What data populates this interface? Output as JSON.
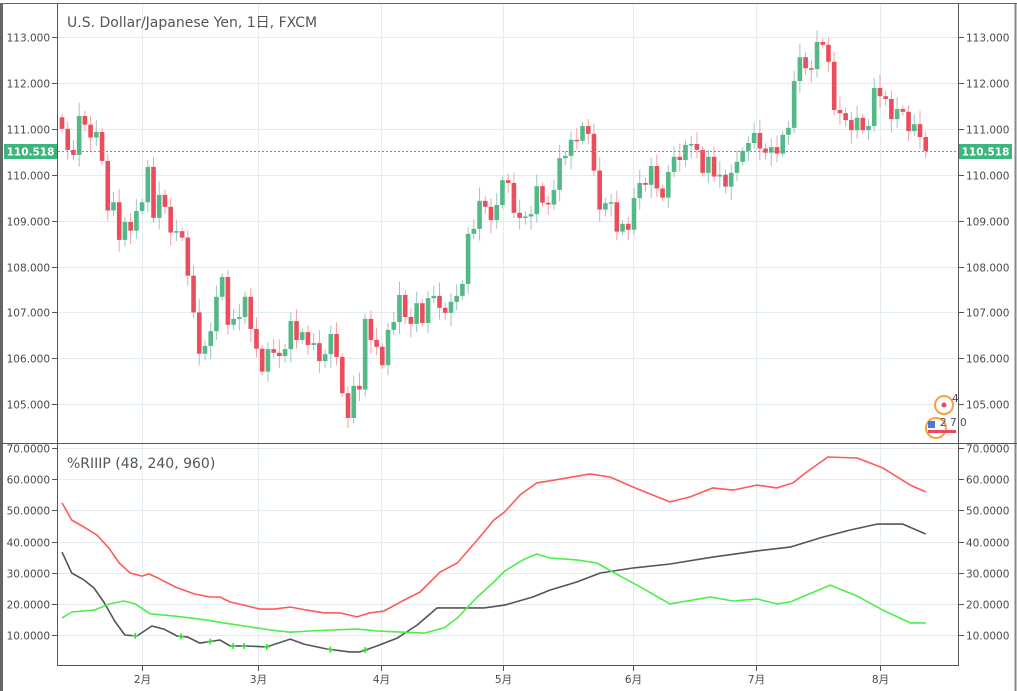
{
  "chart_data": [
    {
      "type": "candlestick",
      "title": "U.S. Dollar/Japanese Yen, 1日, FXCM",
      "last_price": 110.518,
      "last_price_label": "110.518",
      "ylim": [
        104.3,
        113.8
      ],
      "y_ticks": [
        "105.000",
        "106.000",
        "107.000",
        "108.000",
        "109.000",
        "110.000",
        "111.000",
        "112.000",
        "113.000"
      ],
      "first_open": 111.25,
      "close": [
        111.0,
        110.54,
        110.43,
        111.28,
        111.09,
        110.81,
        110.93,
        110.3,
        109.22,
        109.4,
        108.58,
        108.97,
        108.78,
        109.21,
        109.4,
        110.17,
        109.06,
        109.56,
        109.3,
        108.74,
        108.77,
        108.63,
        107.8,
        107.0,
        106.1,
        106.27,
        106.59,
        107.34,
        107.77,
        106.73,
        106.86,
        106.9,
        107.34,
        106.64,
        106.21,
        105.71,
        106.2,
        106.12,
        106.05,
        106.2,
        106.81,
        106.4,
        106.57,
        106.29,
        106.33,
        105.94,
        106.09,
        106.53,
        106.03,
        105.24,
        104.7,
        105.4,
        105.32,
        106.86,
        106.4,
        106.25,
        105.85,
        106.62,
        106.79,
        107.38,
        106.9,
        106.75,
        107.2,
        106.77,
        107.31,
        107.36,
        107.1,
        106.99,
        107.23,
        107.36,
        107.62,
        108.71,
        108.82,
        109.43,
        109.3,
        109.01,
        109.34,
        109.88,
        109.82,
        109.17,
        109.06,
        109.09,
        109.14,
        109.75,
        109.39,
        109.35,
        109.67,
        110.36,
        110.41,
        110.76,
        110.74,
        111.06,
        110.89,
        110.09,
        109.24,
        109.38,
        109.4,
        108.76,
        108.93,
        108.8,
        109.49,
        109.82,
        109.78,
        110.19,
        109.7,
        109.5,
        110.06,
        110.39,
        110.32,
        110.65,
        110.67,
        110.54,
        110.04,
        110.39,
        109.96,
        110.0,
        109.74,
        110.04,
        110.28,
        110.52,
        110.69,
        110.91,
        110.57,
        110.48,
        110.6,
        110.46,
        110.87,
        111.02,
        112.04,
        112.56,
        112.32,
        112.3,
        112.89,
        112.83,
        112.46,
        111.41,
        111.34,
        111.19,
        110.97,
        111.24,
        110.97,
        111.06,
        111.89,
        111.71,
        111.65,
        111.21,
        111.43,
        111.37,
        110.95,
        111.1,
        110.82,
        110.518
      ],
      "event_badges": [
        "4",
        "2 7 0"
      ]
    },
    {
      "type": "line",
      "title": "%RIIIP (48, 240, 960)",
      "ylim": [
        5,
        72
      ],
      "y_ticks": [
        "10.0000",
        "20.0000",
        "30.0000",
        "40.0000",
        "50.0000",
        "60.0000",
        "70.0000"
      ],
      "series": [
        {
          "name": "48",
          "color": "#ff5a5a",
          "points": [
            [
              0,
              52.4
            ],
            [
              1.7,
              46.9
            ],
            [
              3.8,
              44.7
            ],
            [
              6.1,
              42.1
            ],
            [
              8.2,
              37.9
            ],
            [
              10.0,
              33.1
            ],
            [
              11.9,
              29.9
            ],
            [
              14.0,
              28.9
            ],
            [
              15.2,
              29.6
            ],
            [
              17.1,
              28.0
            ],
            [
              19.8,
              25.4
            ],
            [
              23.1,
              23.2
            ],
            [
              25.9,
              22.2
            ],
            [
              27.6,
              22.2
            ],
            [
              29.4,
              20.6
            ],
            [
              31.8,
              19.6
            ],
            [
              34.6,
              18.3
            ],
            [
              37.1,
              18.3
            ],
            [
              39.9,
              19.0
            ],
            [
              42.8,
              18.0
            ],
            [
              45.8,
              17.1
            ],
            [
              48.6,
              17.1
            ],
            [
              51.6,
              15.8
            ],
            [
              53.8,
              17.1
            ],
            [
              56.3,
              17.7
            ],
            [
              59.8,
              21.2
            ],
            [
              62.6,
              23.8
            ],
            [
              66.1,
              30.2
            ],
            [
              69.1,
              33.1
            ],
            [
              72.6,
              40.5
            ],
            [
              75.5,
              46.9
            ],
            [
              77.4,
              49.5
            ],
            [
              80.1,
              55.0
            ],
            [
              83.0,
              58.8
            ],
            [
              88.3,
              60.4
            ],
            [
              92.3,
              61.7
            ],
            [
              95.8,
              60.7
            ],
            [
              99.8,
              57.5
            ],
            [
              103.3,
              54.9
            ],
            [
              106.3,
              52.7
            ],
            [
              109.8,
              54.3
            ],
            [
              113.8,
              57.2
            ],
            [
              117.3,
              56.5
            ],
            [
              121.5,
              58.1
            ],
            [
              125.0,
              57.2
            ],
            [
              127.8,
              58.8
            ],
            [
              130.2,
              62.3
            ],
            [
              133.9,
              67.1
            ],
            [
              139.0,
              66.8
            ],
            [
              143.5,
              63.6
            ],
            [
              148.3,
              58.1
            ],
            [
              151,
              55.9
            ]
          ]
        },
        {
          "name": "240",
          "color": "#555555",
          "points": [
            [
              0,
              36.6
            ],
            [
              1.7,
              29.9
            ],
            [
              3.8,
              27.7
            ],
            [
              5.6,
              25.1
            ],
            [
              7.3,
              20.6
            ],
            [
              9.3,
              14.2
            ],
            [
              11.0,
              10.0
            ],
            [
              13.1,
              9.7
            ],
            [
              15.7,
              12.9
            ],
            [
              17.8,
              11.9
            ],
            [
              20.1,
              9.7
            ],
            [
              21.9,
              9.4
            ],
            [
              24.1,
              7.4
            ],
            [
              27.6,
              8.4
            ],
            [
              29.4,
              6.5
            ],
            [
              31.8,
              6.5
            ],
            [
              35.8,
              6.2
            ],
            [
              39.9,
              8.7
            ],
            [
              42.3,
              7.1
            ],
            [
              46.3,
              5.5
            ],
            [
              50.3,
              4.6
            ],
            [
              52.1,
              4.6
            ],
            [
              55.1,
              6.5
            ],
            [
              58.6,
              9.0
            ],
            [
              62.1,
              13.2
            ],
            [
              65.6,
              18.7
            ],
            [
              67.8,
              18.7
            ],
            [
              73.8,
              18.7
            ],
            [
              77.4,
              19.6
            ],
            [
              82.3,
              22.2
            ],
            [
              85.3,
              24.4
            ],
            [
              90.0,
              27.0
            ],
            [
              94.1,
              29.9
            ],
            [
              99.8,
              31.5
            ],
            [
              106.3,
              32.8
            ],
            [
              113.8,
              35.0
            ],
            [
              121.5,
              37.0
            ],
            [
              127.3,
              38.2
            ],
            [
              133.0,
              41.4
            ],
            [
              137.8,
              43.7
            ],
            [
              142.5,
              45.6
            ],
            [
              147.0,
              45.6
            ],
            [
              151,
              42.4
            ]
          ]
        },
        {
          "name": "960",
          "color": "#4cee4c",
          "points": [
            [
              0,
              15.5
            ],
            [
              1.7,
              17.4
            ],
            [
              5.6,
              18.0
            ],
            [
              8.4,
              20.0
            ],
            [
              10.8,
              20.9
            ],
            [
              12.8,
              20.0
            ],
            [
              15.4,
              16.8
            ],
            [
              19.6,
              16.1
            ],
            [
              22.4,
              15.5
            ],
            [
              25.3,
              14.8
            ],
            [
              28.3,
              13.9
            ],
            [
              32.9,
              12.6
            ],
            [
              36.4,
              11.6
            ],
            [
              39.9,
              10.9
            ],
            [
              43.4,
              11.3
            ],
            [
              46.9,
              11.6
            ],
            [
              51.6,
              11.9
            ],
            [
              55.1,
              11.3
            ],
            [
              59.8,
              10.9
            ],
            [
              63.3,
              10.6
            ],
            [
              66.8,
              12.3
            ],
            [
              69.1,
              15.5
            ],
            [
              72.6,
              22.2
            ],
            [
              75.5,
              27.0
            ],
            [
              77.4,
              30.5
            ],
            [
              80.6,
              34.1
            ],
            [
              83.0,
              36.0
            ],
            [
              85.3,
              34.7
            ],
            [
              90.0,
              34.1
            ],
            [
              93.5,
              33.1
            ],
            [
              96.3,
              30.2
            ],
            [
              100.5,
              26.0
            ],
            [
              106.3,
              20.0
            ],
            [
              113.3,
              22.2
            ],
            [
              117.3,
              20.9
            ],
            [
              121.5,
              21.6
            ],
            [
              125.0,
              20.0
            ],
            [
              127.3,
              20.6
            ],
            [
              134.3,
              26.0
            ],
            [
              139.0,
              22.5
            ],
            [
              143.5,
              18.0
            ],
            [
              148.3,
              13.9
            ],
            [
              151,
              13.9
            ]
          ]
        }
      ],
      "markers_on": "240",
      "marker_color": "#33dd33",
      "marker_indices": [
        12.8,
        20.8,
        25.9,
        29.9,
        31.8,
        35.8,
        46.9,
        53.0
      ]
    }
  ],
  "x_axis": {
    "labels": [
      {
        "label": "2月",
        "index": 14.0
      },
      {
        "label": "3月",
        "index": 34.3
      },
      {
        "label": "4月",
        "index": 55.8
      },
      {
        "label": "5月",
        "index": 77.1
      },
      {
        "label": "6月",
        "index": 99.8
      },
      {
        "label": "7月",
        "index": 121.3
      },
      {
        "label": "8月",
        "index": 143.0
      }
    ]
  },
  "colors": {
    "up": "#53b987",
    "down": "#eb4d5c",
    "up_wick": "#9cc7c4",
    "down_wick": "#f3a1aa",
    "grid": "#e3ebf3",
    "price_line": "#3bb77e"
  }
}
